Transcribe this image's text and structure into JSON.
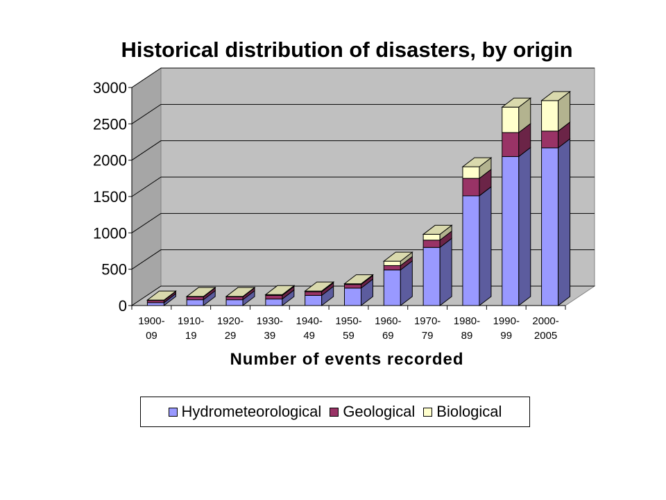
{
  "chart_data": {
    "type": "bar",
    "stacked": true,
    "three_d": true,
    "title": "Historical distribution of disasters, by origin",
    "xlabel": "Number of events recorded",
    "ylabel": "",
    "ylim": [
      0,
      3000
    ],
    "yticks": [
      0,
      500,
      1000,
      1500,
      2000,
      2500,
      3000
    ],
    "grid": true,
    "legend_position": "bottom",
    "categories": [
      [
        "1900-",
        "09"
      ],
      [
        "1910-",
        "19"
      ],
      [
        "1920-",
        "29"
      ],
      [
        "1930-",
        "39"
      ],
      [
        "1940-",
        "49"
      ],
      [
        "1950-",
        "59"
      ],
      [
        "1960-",
        "69"
      ],
      [
        "1970-",
        "79"
      ],
      [
        "1980-",
        "89"
      ],
      [
        "1990-",
        "99"
      ],
      [
        "2000-",
        "2005"
      ]
    ],
    "series": [
      {
        "name": "Hydrometeorological",
        "color": "#9999ff",
        "side": "#5c5c9e",
        "top": "#b3b3ff",
        "values": [
          40,
          80,
          80,
          90,
          140,
          240,
          490,
          800,
          1510,
          2050,
          2170
        ]
      },
      {
        "name": "Geological",
        "color": "#993366",
        "side": "#6b2447",
        "top": "#b3527f",
        "values": [
          30,
          40,
          40,
          50,
          50,
          50,
          60,
          100,
          240,
          330,
          230
        ]
      },
      {
        "name": "Biological",
        "color": "#ffffcc",
        "side": "#b3b38f",
        "top": "#d9d9ad",
        "values": [
          5,
          5,
          5,
          10,
          10,
          10,
          60,
          80,
          160,
          350,
          420
        ]
      }
    ],
    "colors": {
      "back_wall": "#c0c0c0",
      "floor": "#c0c0c0",
      "grid": "#000000"
    }
  }
}
